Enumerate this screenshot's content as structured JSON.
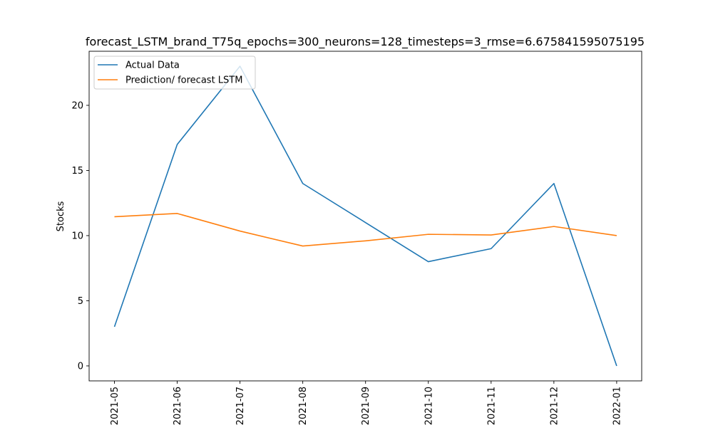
{
  "chart_data": {
    "type": "line",
    "title": "forecast_LSTM_brand_T75q_epochs=300_neurons=128_timesteps=3_rmse=6.675841595075195",
    "xlabel": "",
    "ylabel": "Stocks",
    "x": [
      "2021-05-01",
      "2021-06-01",
      "2021-07-01",
      "2021-08-01",
      "2021-09-01",
      "2021-10-01",
      "2021-11-01",
      "2021-12-01",
      "2022-01-01"
    ],
    "x_tick_labels": [
      "2021-05",
      "2021-06",
      "2021-07",
      "2021-08",
      "2021-09",
      "2021-10",
      "2021-11",
      "2021-12",
      "2022-01"
    ],
    "y_ticks": [
      0,
      5,
      10,
      15,
      20
    ],
    "ylim": [
      -1.15,
      24.15
    ],
    "grid": false,
    "legend_position": "top-left",
    "series": [
      {
        "name": "Actual Data",
        "color": "#1f77b4",
        "values": [
          3,
          17,
          23,
          14,
          11,
          8,
          9,
          14,
          0
        ]
      },
      {
        "name": "Prediction/ forecast LSTM",
        "color": "#ff7f0e",
        "values": [
          11.45,
          11.7,
          10.35,
          9.2,
          9.6,
          10.1,
          10.05,
          10.7,
          10.0
        ]
      }
    ]
  }
}
